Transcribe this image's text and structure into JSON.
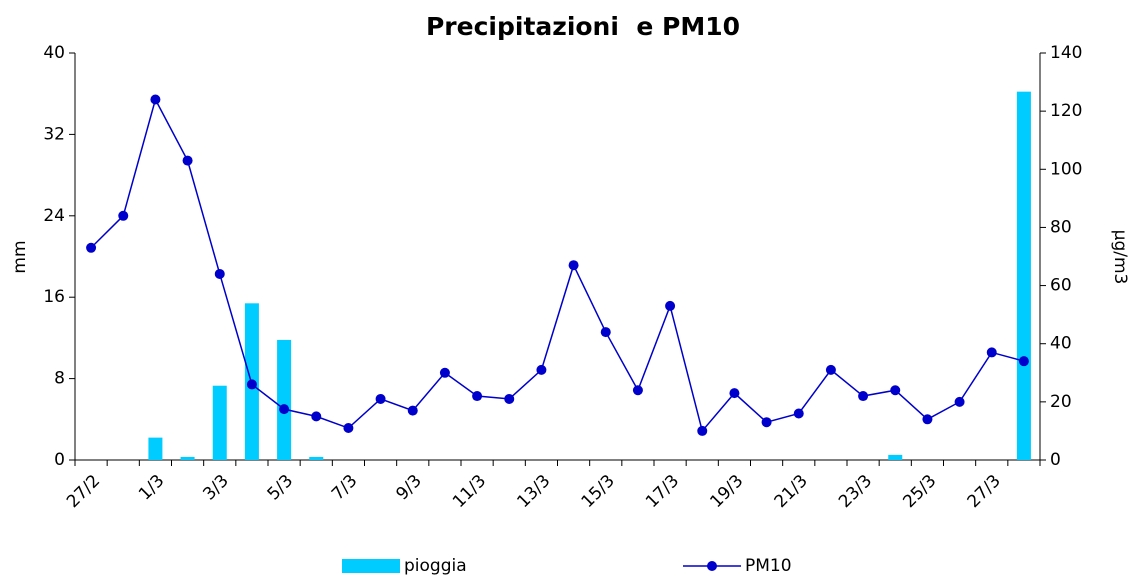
{
  "chart_data": {
    "type": "combo",
    "title": "Precipitazioni  e PM10",
    "ylabel": "mm",
    "y2label": "µg/m3",
    "categories": [
      "27/2",
      null,
      "1/3",
      null,
      "3/3",
      null,
      "5/3",
      null,
      "7/3",
      null,
      "9/3",
      null,
      "11/3",
      null,
      "13/3",
      null,
      "15/3",
      null,
      "17/3",
      null,
      "19/3",
      null,
      "21/3",
      null,
      "23/3",
      null,
      "25/3",
      null,
      "27/3",
      null
    ],
    "ylim": [
      0,
      40
    ],
    "yticks": [
      0,
      8,
      16,
      24,
      32,
      40
    ],
    "y2lim": [
      0,
      140
    ],
    "y2ticks": [
      0,
      20,
      40,
      60,
      80,
      100,
      120,
      140
    ],
    "legend": "bottom",
    "series": [
      {
        "name": "pioggia",
        "type": "bar",
        "color": "#00ccff",
        "axis": "y",
        "values": [
          0,
          0,
          2.2,
          0.3,
          7.3,
          15.4,
          11.8,
          0.3,
          0,
          0,
          0,
          0,
          0,
          0,
          0,
          0,
          0,
          0,
          0,
          0,
          0,
          0,
          0,
          0,
          0,
          0.5,
          0,
          0,
          0,
          36.2
        ]
      },
      {
        "name": "PM10",
        "type": "line",
        "color": "#0000cc",
        "axis": "y2",
        "values": [
          73,
          84,
          124,
          103,
          64,
          26,
          17.5,
          15,
          11,
          21,
          17,
          30,
          22,
          21,
          31,
          67,
          44,
          24,
          53,
          10,
          23,
          13,
          16,
          31,
          22,
          24,
          14,
          20,
          37,
          34
        ]
      }
    ]
  }
}
